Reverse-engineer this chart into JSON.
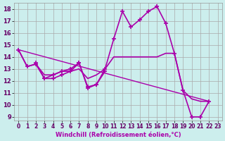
{
  "xlabel": "Windchill (Refroidissement éolien,°C)",
  "bg_color": "#cceeed",
  "line_color": "#aa00aa",
  "grid_color": "#aaaaaa",
  "xlim": [
    -0.5,
    23.5
  ],
  "ylim": [
    8.7,
    18.5
  ],
  "yticks": [
    9,
    10,
    11,
    12,
    13,
    14,
    15,
    16,
    17,
    18
  ],
  "xticks": [
    0,
    1,
    2,
    3,
    4,
    5,
    6,
    7,
    8,
    9,
    10,
    11,
    12,
    13,
    14,
    15,
    16,
    17,
    18,
    19,
    20,
    21,
    22,
    23
  ],
  "line1_x": [
    0,
    1,
    2,
    3,
    4,
    5,
    6,
    7,
    8,
    9,
    10,
    11,
    12,
    13,
    14,
    15,
    16,
    17,
    18,
    19,
    20,
    21,
    22
  ],
  "line1_y": [
    14.6,
    13.2,
    13.4,
    12.2,
    12.5,
    12.8,
    13.0,
    13.5,
    11.4,
    11.7,
    13.0,
    15.5,
    17.8,
    16.5,
    17.1,
    17.8,
    18.2,
    16.8,
    14.3,
    11.2,
    9.0,
    9.0,
    10.3
  ],
  "line2_x": [
    0,
    1,
    2,
    3,
    4,
    5,
    6,
    7,
    8,
    9,
    10,
    11,
    12,
    13,
    14,
    15,
    16,
    17,
    18,
    19,
    20,
    21,
    22
  ],
  "line2_y": [
    14.6,
    13.2,
    13.4,
    12.5,
    12.5,
    12.8,
    12.8,
    13.0,
    12.2,
    12.5,
    13.0,
    14.0,
    14.0,
    14.0,
    14.0,
    14.0,
    14.0,
    14.3,
    14.3,
    11.2,
    10.5,
    10.3,
    10.3
  ],
  "line3_x": [
    2,
    3,
    4,
    5,
    6,
    7,
    8,
    9,
    10
  ],
  "line3_y": [
    13.5,
    12.2,
    12.2,
    12.5,
    12.8,
    13.5,
    11.5,
    11.7,
    12.8
  ],
  "line4_x": [
    0,
    22
  ],
  "line4_y": [
    14.6,
    10.3
  ]
}
